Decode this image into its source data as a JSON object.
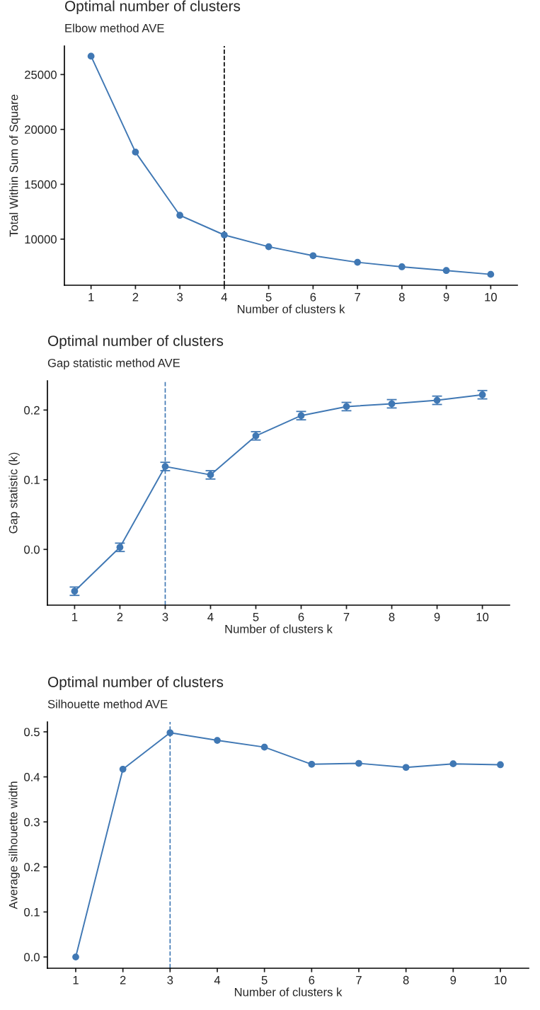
{
  "chart_data": [
    {
      "type": "line",
      "title": "Optimal number of clusters",
      "subtitle": "Elbow method AVE",
      "xlabel": "Number of clusters k",
      "ylabel": "Total Within Sum of Square",
      "categories": [
        "1",
        "2",
        "3",
        "4",
        "5",
        "6",
        "7",
        "8",
        "9",
        "10"
      ],
      "series": [
        {
          "color": "#4078b4",
          "values": [
            26670,
            17930,
            12170,
            10380,
            9310,
            8490,
            7890,
            7480,
            7140,
            6790
          ]
        }
      ],
      "ylim": [
        5800,
        27600
      ],
      "yticks": [
        10000,
        15000,
        20000,
        25000
      ],
      "marker": "circle",
      "line_style": "solid",
      "grid": false,
      "legend": false,
      "ref_lines": [
        {
          "axis": "x",
          "value": "4",
          "color": "#000000",
          "line_style": "dashed"
        }
      ]
    },
    {
      "type": "line",
      "title": "Optimal number of clusters",
      "subtitle": "Gap statistic method AVE",
      "xlabel": "Number of clusters k",
      "ylabel": "Gap statistic (k)",
      "categories": [
        "1",
        "2",
        "3",
        "4",
        "5",
        "6",
        "7",
        "8",
        "9",
        "10"
      ],
      "series": [
        {
          "color": "#4078b4",
          "values": [
            -0.06,
            0.003,
            0.119,
            0.107,
            0.163,
            0.192,
            0.205,
            0.209,
            0.214,
            0.222
          ],
          "errors": [
            0.006,
            0.006,
            0.006,
            0.006,
            0.006,
            0.006,
            0.006,
            0.006,
            0.006,
            0.006
          ]
        }
      ],
      "ylim": [
        -0.08,
        0.242
      ],
      "yticks": [
        {
          "value": 0.0,
          "label": "0.0"
        },
        0.1,
        0.2
      ],
      "marker": "circle",
      "line_style": "solid",
      "grid": false,
      "legend": false,
      "ref_lines": [
        {
          "axis": "x",
          "value": "3",
          "color": "#4078b4",
          "line_style": "dashed"
        }
      ]
    },
    {
      "type": "line",
      "title": "Optimal number of clusters",
      "subtitle": "Silhouette method AVE",
      "xlabel": "Number of clusters k",
      "ylabel": "Average silhouette width",
      "categories": [
        "1",
        "2",
        "3",
        "4",
        "5",
        "6",
        "7",
        "8",
        "9",
        "10"
      ],
      "series": [
        {
          "color": "#4078b4",
          "values": [
            0.0,
            0.417,
            0.498,
            0.481,
            0.466,
            0.428,
            0.43,
            0.421,
            0.429,
            0.427
          ]
        }
      ],
      "ylim": [
        -0.025,
        0.522
      ],
      "yticks": [
        {
          "value": 0.0,
          "label": "0.0"
        },
        0.1,
        0.2,
        0.3,
        0.4,
        0.5
      ],
      "marker": "circle",
      "line_style": "solid",
      "grid": false,
      "legend": false,
      "ref_lines": [
        {
          "axis": "x",
          "value": "3",
          "color": "#4078b4",
          "line_style": "dashed"
        }
      ]
    }
  ]
}
